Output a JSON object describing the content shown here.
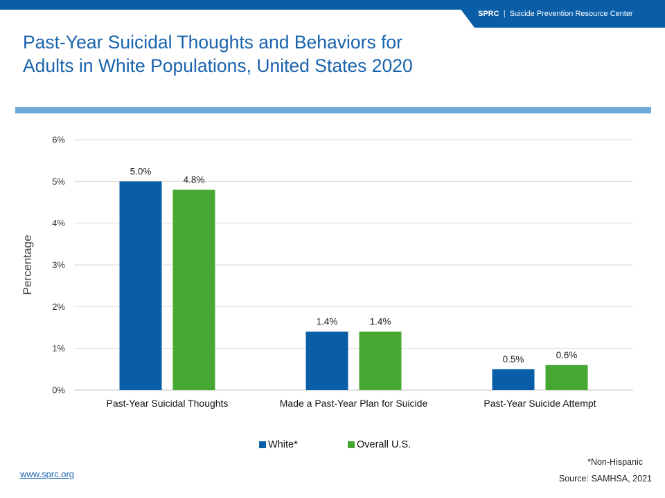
{
  "header": {
    "brand_abbr": "SPRC",
    "brand_separator": "|",
    "brand_name": "Suicide Prevention Resource Center",
    "colors": {
      "bar": "#0a5ea8",
      "rule": "#6ea8da",
      "title": "#1a63ad"
    }
  },
  "title": {
    "line1": "Past-Year Suicidal Thoughts and Behaviors for",
    "line2": "Adults in White Populations, United States 2020"
  },
  "chart_data": {
    "type": "bar",
    "title": "",
    "xlabel": "",
    "ylabel": "Percentage",
    "ylim": [
      0,
      6
    ],
    "yticks": [
      0,
      1,
      2,
      3,
      4,
      5,
      6
    ],
    "ytick_labels": [
      "0%",
      "1%",
      "2%",
      "3%",
      "4%",
      "5%",
      "6%"
    ],
    "grid": true,
    "legend_position": "bottom",
    "categories": [
      "Past-Year Suicidal Thoughts",
      "Made a Past-Year Plan for Suicide",
      "Past-Year Suicide Attempt"
    ],
    "series": [
      {
        "name": "White*",
        "color": "#0a5ea8",
        "values": [
          5.0,
          1.4,
          0.5
        ],
        "labels": [
          "5.0%",
          "1.4%",
          "0.5%"
        ]
      },
      {
        "name": "Overall U.S.",
        "color": "#46a832",
        "values": [
          4.8,
          1.4,
          0.6
        ],
        "labels": [
          "4.8%",
          "1.4%",
          "0.6%"
        ]
      }
    ]
  },
  "footer": {
    "footnote": "*Non-Hispanic",
    "source": "Source:  SAMHSA,  2021",
    "website": "www.sprc.org"
  }
}
